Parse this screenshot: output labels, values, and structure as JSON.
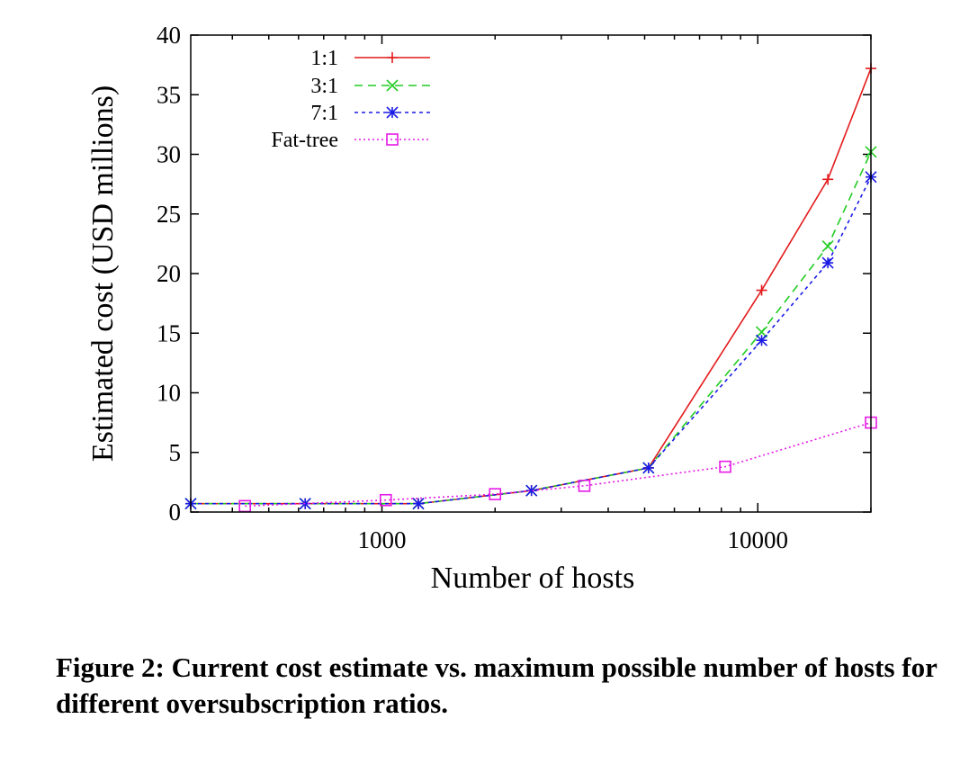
{
  "caption": "Figure 2: Current cost estimate vs. maximum possible number of hosts for different oversubscription ratios.",
  "chart_data": {
    "type": "line",
    "title": "",
    "xlabel": "Number of hosts",
    "ylabel": "Estimated cost (USD millions)",
    "xscale": "log",
    "xlim": [
      310,
      20000
    ],
    "ylim": [
      0,
      40
    ],
    "xticks": [
      1000,
      10000
    ],
    "xtick_labels": [
      "1000",
      "10000"
    ],
    "yticks": [
      0,
      5,
      10,
      15,
      20,
      25,
      30,
      35,
      40
    ],
    "ytick_labels": [
      "0",
      "5",
      "10",
      "15",
      "20",
      "25",
      "30",
      "35",
      "40"
    ],
    "grid": false,
    "legend_position": "top-left",
    "series": [
      {
        "name": "1:1",
        "color": "#e31a1c",
        "dash": "solid",
        "marker": "plus",
        "x": [
          310,
          625,
          1250,
          2500,
          5120,
          10240,
          15360,
          20000
        ],
        "y": [
          0.7,
          0.7,
          0.7,
          1.8,
          3.7,
          18.6,
          27.9,
          37.2
        ]
      },
      {
        "name": "3:1",
        "color": "#22cc22",
        "dash": "dashed",
        "marker": "x",
        "x": [
          310,
          625,
          1250,
          2500,
          5120,
          10240,
          15360,
          20000
        ],
        "y": [
          0.7,
          0.7,
          0.7,
          1.8,
          3.7,
          15.1,
          22.3,
          30.2
        ]
      },
      {
        "name": "7:1",
        "color": "#1a1ae6",
        "dash": "fine-dashed",
        "marker": "star",
        "x": [
          310,
          625,
          1250,
          2500,
          5120,
          10240,
          15360,
          20000
        ],
        "y": [
          0.7,
          0.7,
          0.7,
          1.8,
          3.7,
          14.4,
          20.9,
          28.1
        ]
      },
      {
        "name": "Fat-tree",
        "color": "#e61ae6",
        "dash": "dotted",
        "marker": "square",
        "x": [
          432,
          1024,
          2000,
          3456,
          8192,
          20000
        ],
        "y": [
          0.5,
          1.0,
          1.5,
          2.2,
          3.8,
          7.5
        ]
      }
    ]
  }
}
